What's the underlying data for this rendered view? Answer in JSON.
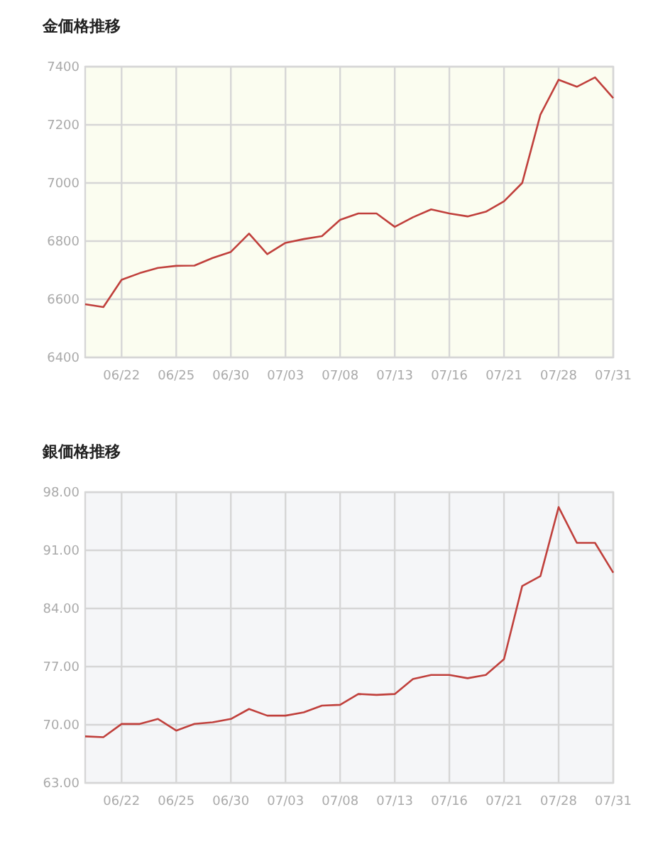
{
  "chart_data": [
    {
      "type": "line",
      "title": "金価格推移",
      "categories": [
        null,
        null,
        "06/22",
        null,
        null,
        "06/25",
        null,
        null,
        "06/30",
        null,
        null,
        "07/03",
        null,
        null,
        "07/08",
        null,
        null,
        "07/13",
        null,
        null,
        "07/16",
        null,
        null,
        "07/21",
        null,
        null,
        "07/28",
        null,
        null,
        "07/31"
      ],
      "series": [
        {
          "color": "#c0403c",
          "values": [
            6583,
            6573,
            6667,
            6690,
            6708,
            6715,
            6716,
            6742,
            6763,
            6826,
            6755,
            6794,
            6807,
            6817,
            6873,
            6895,
            6895,
            6849,
            6882,
            6909,
            6895,
            6885,
            6901,
            6937,
            7000,
            7235,
            7355,
            7331,
            7363,
            7292
          ]
        }
      ],
      "ylim": [
        6400,
        7400
      ],
      "yticks": [
        6400,
        6600,
        6800,
        7000,
        7200,
        7400
      ],
      "grid": true,
      "marker": "none"
    },
    {
      "type": "line",
      "title": "銀価格推移",
      "categories": [
        null,
        null,
        "06/22",
        null,
        null,
        "06/25",
        null,
        null,
        "06/30",
        null,
        null,
        "07/03",
        null,
        null,
        "07/08",
        null,
        null,
        "07/13",
        null,
        null,
        "07/16",
        null,
        null,
        "07/21",
        null,
        null,
        "07/28",
        null,
        null,
        "07/31"
      ],
      "series": [
        {
          "color": "#c0403c",
          "values": [
            68.6,
            68.5,
            70.1,
            70.1,
            70.7,
            69.3,
            70.1,
            70.3,
            70.7,
            71.9,
            71.1,
            71.1,
            71.5,
            72.3,
            72.4,
            73.7,
            73.6,
            73.7,
            75.5,
            76.0,
            76.0,
            75.6,
            76.0,
            77.9,
            86.7,
            87.9,
            96.2,
            91.9,
            91.9,
            88.3
          ]
        }
      ],
      "ylim": [
        63,
        98
      ],
      "yticks": [
        {
          "value": 63,
          "label": "63.00"
        },
        {
          "value": 70,
          "label": "70.00"
        },
        {
          "value": 77,
          "label": "77.00"
        },
        {
          "value": 84,
          "label": "84.00"
        },
        {
          "value": 91,
          "label": "91.00"
        },
        {
          "value": 98,
          "label": "98.00"
        }
      ],
      "grid": true,
      "marker": "none"
    }
  ]
}
